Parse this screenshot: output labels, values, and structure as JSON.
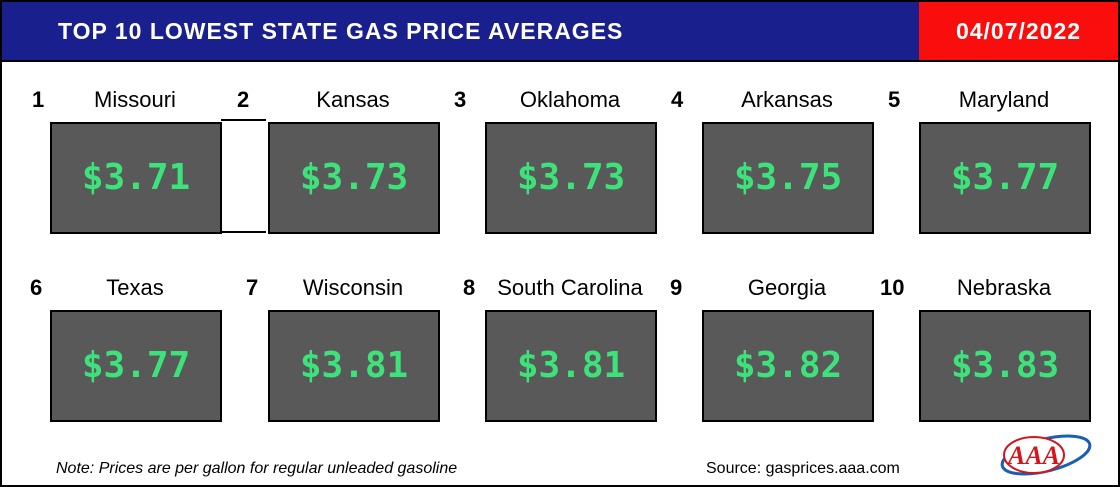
{
  "header": {
    "title": "TOP 10 LOWEST STATE GAS PRICE AVERAGES",
    "date": "04/07/2022"
  },
  "states": [
    {
      "rank": "1",
      "name": "Missouri",
      "price": "$3.71"
    },
    {
      "rank": "2",
      "name": "Kansas",
      "price": "$3.73"
    },
    {
      "rank": "3",
      "name": "Oklahoma",
      "price": "$3.73"
    },
    {
      "rank": "4",
      "name": "Arkansas",
      "price": "$3.75"
    },
    {
      "rank": "5",
      "name": "Maryland",
      "price": "$3.77"
    },
    {
      "rank": "6",
      "name": "Texas",
      "price": "$3.77"
    },
    {
      "rank": "7",
      "name": "Wisconsin",
      "price": "$3.81"
    },
    {
      "rank": "8",
      "name": "South Carolina",
      "price": "$3.81"
    },
    {
      "rank": "9",
      "name": "Georgia",
      "price": "$3.82"
    },
    {
      "rank": "10",
      "name": "Nebraska",
      "price": "$3.83"
    }
  ],
  "footer": {
    "note": "Note: Prices are per gallon for regular unleaded gasoline",
    "source": "Source: gasprices.aaa.com"
  },
  "logo": {
    "text": "AAA",
    "icon": "aaa-logo-icon",
    "color": "#d7141a",
    "ring_color": "#1a5fb4"
  },
  "colors": {
    "title_bar": "#1a1f8e",
    "date_box": "#fa0d0d",
    "price_box": "#595959",
    "price_text": "#3ee27a"
  }
}
